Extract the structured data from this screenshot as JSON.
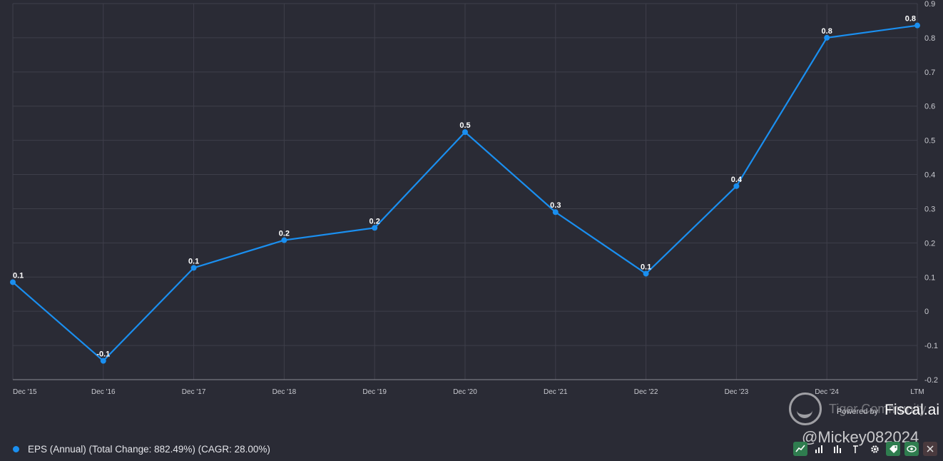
{
  "chart_data": {
    "type": "line",
    "categories": [
      "Dec '15",
      "Dec '16",
      "Dec '17",
      "Dec '18",
      "Dec '19",
      "Dec '20",
      "Dec '21",
      "Dec '22",
      "Dec '23",
      "Dec '24",
      "LTM"
    ],
    "series": [
      {
        "name": "EPS (Annual) (Total Change: 882.49%) (CAGR: 28.00%)",
        "values": [
          0.085,
          -0.145,
          0.127,
          0.208,
          0.244,
          0.524,
          0.29,
          0.11,
          0.366,
          0.8,
          0.836
        ],
        "data_labels": [
          "0.1",
          "-0.1",
          "0.1",
          "0.2",
          "0.2",
          "0.5",
          "0.3",
          "0.1",
          "0.4",
          "0.8",
          "0.8"
        ],
        "color": "#1a8ff0"
      }
    ],
    "ylim": [
      -0.2,
      0.9
    ],
    "yticks": [
      -0.2,
      -0.1,
      0,
      0.1,
      0.2,
      0.3,
      0.4,
      0.5,
      0.6,
      0.7,
      0.8,
      0.9
    ],
    "ytick_labels": [
      "-0.2",
      "-0.1",
      "0",
      "0.1",
      "0.2",
      "0.3",
      "0.4",
      "0.5",
      "0.6",
      "0.7",
      "0.8",
      "0.9"
    ],
    "y_axis_side": "right",
    "grid": true,
    "legend_position": "bottom-left"
  },
  "legend": {
    "label": "EPS (Annual) (Total Change: 882.49%) (CAGR: 28.00%)"
  },
  "watermark": {
    "community": "Tiger Community",
    "powered_by": "Powered by",
    "brand": "Fiscal.ai",
    "user": "@Mickey082024"
  },
  "toolbar": {
    "icons": [
      "line-chart-icon",
      "bar-chart-icon",
      "column-chart-icon",
      "cursor-icon",
      "gear-icon",
      "tag-icon",
      "eye-icon",
      "close-icon"
    ]
  },
  "colors": {
    "background": "#2a2b35",
    "grid": "#3e3f4a",
    "series": "#1a8ff0"
  }
}
